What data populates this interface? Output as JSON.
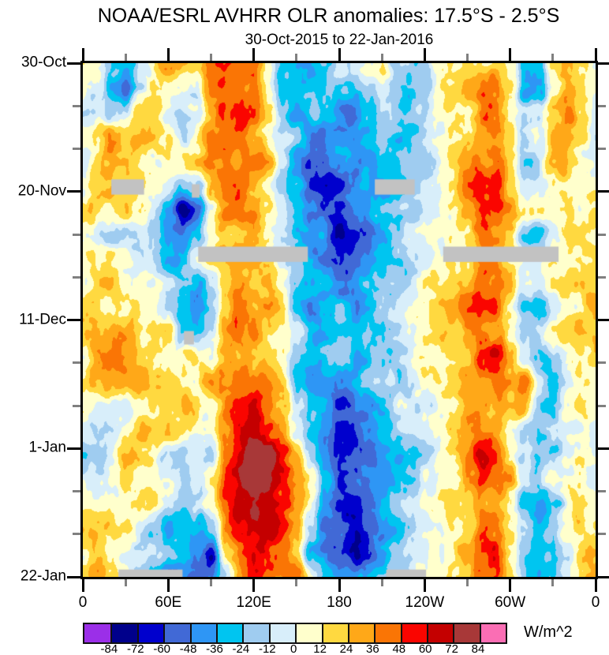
{
  "chart_data": {
    "type": "heatmap",
    "title": "NOAA/ESRL AVHRR OLR anomalies: 17.5°S - 2.5°S",
    "subtitle": "30-Oct-2015 to 22-Jan-2016",
    "x_axis": {
      "range_deg": [
        0,
        360
      ],
      "major_ticks": [
        {
          "lon": 0,
          "label": "0"
        },
        {
          "lon": 60,
          "label": "60E"
        },
        {
          "lon": 120,
          "label": "120E"
        },
        {
          "lon": 180,
          "label": "180"
        },
        {
          "lon": 240,
          "label": "120W"
        },
        {
          "lon": 300,
          "label": "60W"
        },
        {
          "lon": 360,
          "label": "0"
        }
      ],
      "minor_lons": [
        30,
        90,
        150,
        210,
        270,
        330
      ]
    },
    "y_axis": {
      "range_days": [
        0,
        84
      ],
      "major_ticks": [
        {
          "day": 0,
          "label": "30-Oct"
        },
        {
          "day": 21,
          "label": "20-Nov"
        },
        {
          "day": 42,
          "label": "11-Dec"
        },
        {
          "day": 63,
          "label": "1-Jan"
        },
        {
          "day": 84,
          "label": "22-Jan"
        }
      ],
      "minor_days": [
        7,
        14,
        28,
        35,
        49,
        56,
        70,
        77
      ]
    },
    "colorbar": {
      "unit": "W/m^2",
      "min": -84,
      "max": 84,
      "step": 12,
      "labels": [
        "-84",
        "-72",
        "-60",
        "-48",
        "-36",
        "-24",
        "-12",
        "0",
        "12",
        "24",
        "36",
        "48",
        "60",
        "72",
        "84"
      ],
      "colors": [
        "#9B2FE8",
        "#00008B",
        "#0000CD",
        "#4169D6",
        "#2E96F5",
        "#00C5F0",
        "#9FCCF0",
        "#D8EEFA",
        "#FFFFCC",
        "#FFD940",
        "#FFA818",
        "#FA7505",
        "#FA0500",
        "#C40000",
        "#A83838",
        "#FA6EB4"
      ]
    },
    "grid": {
      "lons": [
        0,
        10,
        20,
        30,
        40,
        50,
        60,
        70,
        80,
        90,
        100,
        110,
        120,
        130,
        140,
        150,
        160,
        170,
        180,
        190,
        200,
        210,
        220,
        230,
        240,
        250,
        260,
        270,
        280,
        290,
        300,
        310,
        320,
        330,
        340,
        350,
        360
      ],
      "days": [
        0,
        4,
        8,
        12,
        16,
        20,
        24,
        28,
        32,
        36,
        40,
        44,
        48,
        52,
        56,
        60,
        64,
        68,
        72,
        76,
        80,
        84
      ],
      "values": [
        [
          8,
          -5,
          -20,
          -30,
          0,
          15,
          28,
          15,
          5,
          40,
          48,
          45,
          35,
          5,
          -25,
          -32,
          -28,
          -22,
          -18,
          -12,
          0,
          8,
          -12,
          -18,
          -8,
          10,
          15,
          22,
          28,
          30,
          18,
          -30,
          -32,
          5,
          15,
          10,
          8
        ],
        [
          0,
          -15,
          -40,
          -52,
          -15,
          10,
          25,
          10,
          -5,
          35,
          52,
          48,
          38,
          10,
          -28,
          -35,
          -35,
          -30,
          -28,
          -35,
          -20,
          -5,
          -18,
          -20,
          -10,
          8,
          15,
          25,
          32,
          28,
          12,
          -32,
          -25,
          15,
          40,
          20,
          0
        ],
        [
          -12,
          -20,
          -28,
          -22,
          10,
          25,
          5,
          -18,
          -10,
          28,
          45,
          50,
          32,
          5,
          -20,
          -28,
          -25,
          -30,
          -42,
          -52,
          -35,
          -25,
          -20,
          -15,
          -8,
          5,
          12,
          25,
          35,
          32,
          18,
          -15,
          -10,
          30,
          50,
          15,
          -12
        ],
        [
          -8,
          12,
          30,
          35,
          25,
          20,
          8,
          -10,
          5,
          30,
          42,
          45,
          40,
          20,
          -5,
          -25,
          -38,
          -35,
          -45,
          -48,
          -38,
          -22,
          -22,
          -18,
          -10,
          2,
          10,
          22,
          32,
          38,
          25,
          -18,
          -8,
          25,
          38,
          18,
          -8
        ],
        [
          5,
          20,
          35,
          30,
          22,
          12,
          15,
          5,
          12,
          32,
          40,
          38,
          30,
          18,
          -12,
          -35,
          -55,
          -58,
          -48,
          -42,
          -32,
          -25,
          -25,
          -15,
          -8,
          0,
          12,
          28,
          42,
          50,
          20,
          -12,
          -10,
          15,
          25,
          12,
          5
        ],
        [
          10,
          25,
          30,
          25,
          18,
          8,
          -5,
          -35,
          -30,
          20,
          38,
          42,
          25,
          12,
          -15,
          -40,
          -62,
          -68,
          -55,
          -45,
          -38,
          -28,
          -22,
          -15,
          -10,
          -2,
          10,
          32,
          55,
          62,
          28,
          -8,
          -5,
          10,
          18,
          10,
          10
        ],
        [
          15,
          20,
          15,
          10,
          0,
          -15,
          -35,
          -70,
          -50,
          5,
          32,
          38,
          28,
          15,
          -10,
          -35,
          -55,
          -58,
          -58,
          -52,
          -42,
          -30,
          -22,
          -12,
          -8,
          2,
          10,
          28,
          48,
          45,
          22,
          0,
          5,
          10,
          15,
          10,
          15
        ],
        [
          10,
          5,
          -8,
          -12,
          -18,
          -25,
          -40,
          -55,
          -35,
          15,
          32,
          35,
          25,
          10,
          -12,
          -32,
          -42,
          -48,
          -62,
          -68,
          -55,
          -35,
          -25,
          -15,
          -10,
          0,
          10,
          22,
          38,
          32,
          15,
          -15,
          -25,
          -10,
          10,
          15,
          10
        ],
        [
          5,
          10,
          12,
          8,
          -5,
          -15,
          -28,
          -32,
          -18,
          10,
          25,
          30,
          25,
          10,
          -15,
          -30,
          -35,
          -42,
          -55,
          -60,
          -50,
          -32,
          -18,
          -10,
          -5,
          5,
          15,
          30,
          42,
          38,
          20,
          5,
          0,
          5,
          10,
          10,
          5
        ],
        [
          10,
          15,
          20,
          15,
          10,
          5,
          -12,
          -22,
          -28,
          -5,
          28,
          40,
          35,
          25,
          10,
          -15,
          -30,
          -28,
          -42,
          -48,
          -38,
          -22,
          -12,
          -8,
          0,
          10,
          20,
          35,
          52,
          45,
          20,
          -12,
          -18,
          0,
          10,
          15,
          10
        ],
        [
          15,
          20,
          12,
          5,
          15,
          10,
          -18,
          -35,
          -45,
          -32,
          15,
          38,
          40,
          30,
          15,
          -20,
          -45,
          -42,
          -32,
          -38,
          -32,
          -18,
          -12,
          -8,
          5,
          12,
          22,
          40,
          50,
          58,
          15,
          -22,
          -28,
          -8,
          10,
          10,
          15
        ],
        [
          20,
          28,
          32,
          22,
          12,
          18,
          25,
          -12,
          -22,
          -12,
          25,
          35,
          32,
          22,
          12,
          -12,
          -28,
          -32,
          -28,
          -32,
          -22,
          -18,
          -12,
          0,
          10,
          15,
          20,
          32,
          48,
          42,
          12,
          -18,
          -12,
          5,
          15,
          20,
          20
        ],
        [
          15,
          22,
          28,
          32,
          28,
          22,
          18,
          12,
          8,
          18,
          32,
          28,
          22,
          18,
          8,
          -18,
          -32,
          -28,
          -32,
          -28,
          -22,
          -12,
          -8,
          5,
          10,
          10,
          15,
          28,
          52,
          58,
          22,
          -12,
          -22,
          -12,
          5,
          10,
          15
        ],
        [
          10,
          15,
          22,
          28,
          32,
          28,
          22,
          18,
          12,
          22,
          28,
          32,
          28,
          22,
          12,
          -22,
          -38,
          -32,
          -38,
          -42,
          -32,
          -22,
          -12,
          -8,
          5,
          10,
          15,
          32,
          42,
          38,
          25,
          40,
          -10,
          -22,
          -12,
          5,
          10
        ],
        [
          5,
          -8,
          -15,
          -5,
          12,
          22,
          28,
          22,
          12,
          18,
          32,
          42,
          48,
          38,
          22,
          -8,
          -32,
          -42,
          -48,
          -42,
          -38,
          -28,
          -18,
          -12,
          0,
          8,
          15,
          28,
          38,
          32,
          12,
          30,
          -20,
          -15,
          0,
          10,
          5
        ],
        [
          -10,
          -18,
          -10,
          10,
          20,
          15,
          10,
          2,
          -12,
          -5,
          30,
          55,
          62,
          52,
          32,
          2,
          -35,
          -55,
          -62,
          -68,
          -48,
          -32,
          -22,
          -12,
          0,
          8,
          18,
          32,
          45,
          40,
          15,
          -10,
          -20,
          -12,
          5,
          10,
          -10
        ],
        [
          -15,
          -10,
          5,
          15,
          10,
          5,
          -8,
          -18,
          -8,
          -5,
          48,
          68,
          80,
          76,
          55,
          25,
          -10,
          -45,
          -70,
          -65,
          -50,
          -35,
          -25,
          -15,
          -5,
          5,
          15,
          35,
          50,
          45,
          20,
          -15,
          -25,
          -15,
          0,
          5,
          -10
        ],
        [
          -10,
          0,
          10,
          20,
          15,
          10,
          0,
          -12,
          -2,
          10,
          52,
          72,
          84,
          80,
          60,
          45,
          10,
          -25,
          -62,
          -60,
          -52,
          -40,
          -30,
          -20,
          -10,
          0,
          12,
          30,
          55,
          50,
          25,
          -10,
          -20,
          -10,
          5,
          10,
          -5
        ],
        [
          5,
          10,
          15,
          10,
          5,
          0,
          -12,
          -25,
          -15,
          12,
          42,
          62,
          76,
          72,
          55,
          40,
          10,
          -35,
          -58,
          -58,
          -48,
          -35,
          -25,
          -15,
          -5,
          5,
          15,
          25,
          40,
          35,
          15,
          -20,
          -30,
          -20,
          -5,
          5,
          5
        ],
        [
          10,
          15,
          10,
          5,
          -8,
          -18,
          -30,
          -38,
          -40,
          -25,
          28,
          52,
          62,
          58,
          50,
          32,
          -12,
          -52,
          -62,
          -72,
          -55,
          -38,
          -25,
          -15,
          -5,
          5,
          10,
          22,
          38,
          32,
          12,
          -15,
          -25,
          -15,
          0,
          10,
          15
        ],
        [
          18,
          22,
          12,
          -5,
          -15,
          -22,
          -32,
          -45,
          -55,
          -75,
          10,
          42,
          55,
          50,
          40,
          10,
          -40,
          -52,
          -58,
          -65,
          -52,
          -35,
          -20,
          -10,
          0,
          8,
          15,
          25,
          45,
          52,
          20,
          -10,
          -28,
          -18,
          -5,
          15,
          18
        ],
        [
          22,
          28,
          15,
          -2,
          -18,
          -28,
          -38,
          -45,
          -52,
          -60,
          -20,
          30,
          48,
          42,
          35,
          25,
          -10,
          -30,
          -35,
          -45,
          -40,
          -28,
          -12,
          -5,
          5,
          10,
          15,
          25,
          42,
          48,
          18,
          -15,
          -35,
          -22,
          -8,
          12,
          22
        ]
      ]
    },
    "missing_data": [
      {
        "lon": [
          20,
          43
        ],
        "day": [
          19.0,
          21.5
        ]
      },
      {
        "lon": [
          205,
          233
        ],
        "day": [
          19.0,
          21.5
        ]
      },
      {
        "lon": [
          76.5,
          82
        ],
        "day": [
          19.8,
          22.0
        ]
      },
      {
        "lon": [
          81,
          158
        ],
        "day": [
          30.0,
          32.5
        ]
      },
      {
        "lon": [
          253,
          334
        ],
        "day": [
          30.0,
          32.5
        ]
      },
      {
        "lon": [
          71,
          78
        ],
        "day": [
          43.8,
          46.0
        ]
      },
      {
        "lon": [
          25,
          70
        ],
        "day": [
          82.8,
          84.5
        ]
      },
      {
        "lon": [
          213,
          241
        ],
        "day": [
          82.8,
          84.5
        ]
      }
    ],
    "missing_color": "#C2C2C2"
  }
}
